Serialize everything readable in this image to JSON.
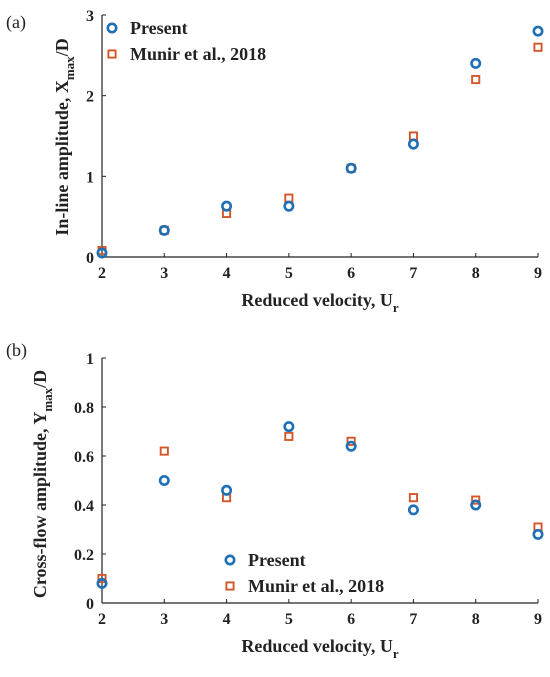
{
  "colors": {
    "present": "#1f6fb5",
    "munir": "#d4572a",
    "axis": "#222222"
  },
  "chart_data": [
    {
      "type": "scatter",
      "panel_label": "(a)",
      "xlabel_main": "Reduced velocity, U",
      "xlabel_sub": "r",
      "ylabel_main": "In-line amplitude, X",
      "ylabel_sub": "max",
      "ylabel_suffix": "/D",
      "xlim": [
        2,
        9
      ],
      "ylim": [
        0,
        3
      ],
      "xticks": [
        "2",
        "3",
        "4",
        "5",
        "6",
        "7",
        "8",
        "9"
      ],
      "yticks": [
        "0",
        "1",
        "2",
        "3"
      ],
      "ytick_values": [
        0,
        1,
        2,
        3
      ],
      "legend_position": "top-left",
      "series": [
        {
          "name": "Present",
          "marker": "circle",
          "x": [
            2,
            3,
            4,
            5,
            6,
            7,
            8,
            9
          ],
          "y": [
            0.05,
            0.33,
            0.63,
            0.63,
            1.1,
            1.4,
            2.4,
            2.8
          ]
        },
        {
          "name": "Munir et al., 2018",
          "marker": "square",
          "x": [
            2,
            3,
            4,
            5,
            6,
            7,
            8,
            9
          ],
          "y": [
            0.08,
            0.33,
            0.54,
            0.73,
            1.1,
            1.5,
            2.2,
            2.6
          ]
        }
      ]
    },
    {
      "type": "scatter",
      "panel_label": "(b)",
      "xlabel_main": "Reduced velocity, U",
      "xlabel_sub": "r",
      "ylabel_main": "Cross-flow amplitude, Y",
      "ylabel_sub": "max",
      "ylabel_suffix": "/D",
      "xlim": [
        2,
        9
      ],
      "ylim": [
        0,
        1
      ],
      "xticks": [
        "2",
        "3",
        "4",
        "5",
        "6",
        "7",
        "8",
        "9"
      ],
      "yticks": [
        "0",
        "0.2",
        "0.4",
        "0.6",
        "0.8",
        "1"
      ],
      "ytick_values": [
        0,
        0.2,
        0.4,
        0.6,
        0.8,
        1
      ],
      "legend_position": "bottom-center",
      "series": [
        {
          "name": "Present",
          "marker": "circle",
          "x": [
            2,
            3,
            4,
            5,
            6,
            7,
            8,
            9
          ],
          "y": [
            0.08,
            0.5,
            0.46,
            0.72,
            0.64,
            0.38,
            0.4,
            0.28
          ]
        },
        {
          "name": "Munir et al., 2018",
          "marker": "square",
          "x": [
            2,
            3,
            4,
            5,
            6,
            7,
            8,
            9
          ],
          "y": [
            0.1,
            0.62,
            0.43,
            0.68,
            0.66,
            0.43,
            0.42,
            0.31
          ]
        }
      ]
    }
  ]
}
